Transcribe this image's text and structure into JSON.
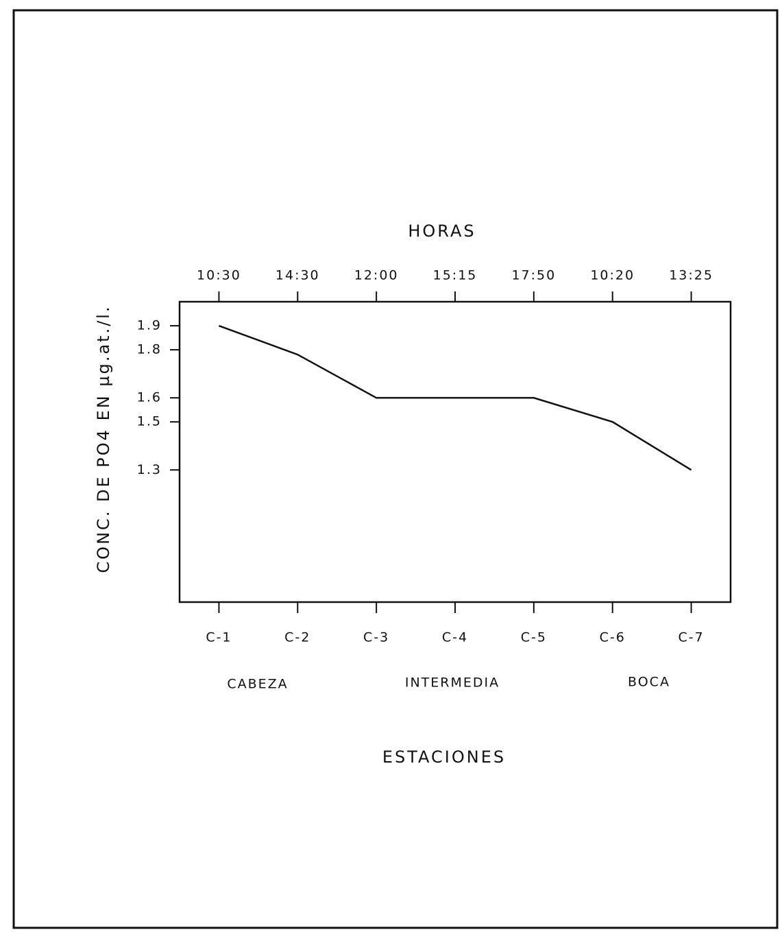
{
  "chart_data": {
    "type": "line",
    "x2_label": "HORAS",
    "x2_categories": [
      "10:30",
      "14:30",
      "12:00",
      "15:15",
      "17:50",
      "10:20",
      "13:25"
    ],
    "categories": [
      "C-1",
      "C-2",
      "C-3",
      "C-4",
      "C-5",
      "C-6",
      "C-7"
    ],
    "values": [
      1.9,
      1.78,
      1.6,
      1.6,
      1.6,
      1.5,
      1.3
    ],
    "color": "#111111",
    "ylim": [
      0.75,
      2.0
    ],
    "yticks": [
      1.3,
      1.5,
      1.6,
      1.8,
      1.9
    ],
    "y_label": "CONC. DE PO4 EN µg.at./l.",
    "annotations": [
      "CABEZA",
      "INTERMEDIA",
      "BOCA"
    ],
    "x_label": "ESTACIONES",
    "grid": false
  }
}
